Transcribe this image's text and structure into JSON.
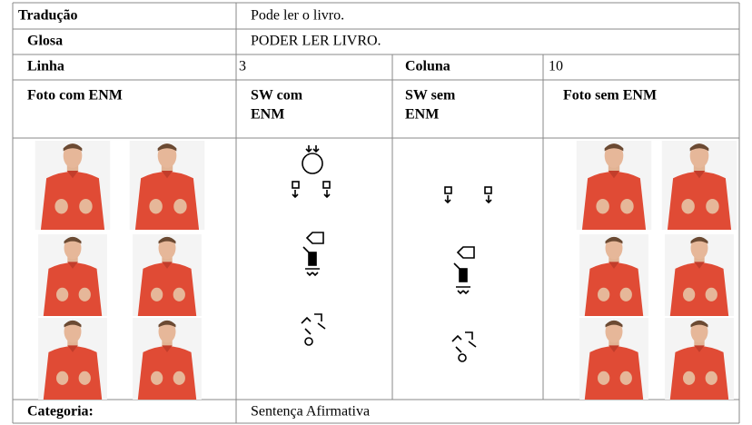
{
  "translation": {
    "label": "Tradução",
    "value": "Pode ler o livro."
  },
  "gloss": {
    "label": "Glosa",
    "value": "PODER LER LIVRO."
  },
  "line": {
    "label": "Linha",
    "value": 3
  },
  "column": {
    "label": "Coluna",
    "value": 10
  },
  "headers": [
    [
      "Foto com ENM"
    ],
    [
      "SW com",
      "ENM"
    ],
    [
      "SW sem",
      "ENM"
    ],
    [
      "Foto sem ENM"
    ]
  ],
  "category": {
    "label": "Categoria:",
    "value": "Sentença Afirmativa"
  }
}
